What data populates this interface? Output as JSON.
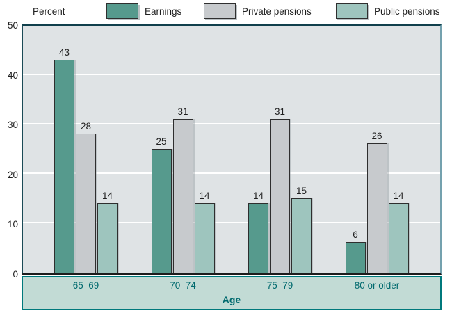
{
  "chart_data": {
    "type": "bar",
    "title": "",
    "ylabel": "Percent",
    "xlabel": "Age",
    "ylim": [
      0,
      50
    ],
    "yticks": [
      0,
      10,
      20,
      30,
      40,
      50
    ],
    "gridlines_at": [
      10,
      20,
      30,
      40
    ],
    "grid": "horizontal white lines",
    "legend_position": "top",
    "categories": [
      "65–69",
      "70–74",
      "75–79",
      "80 or older"
    ],
    "series": [
      {
        "name": "Earnings",
        "color": "#569a8d",
        "values": [
          43,
          25,
          14,
          6
        ]
      },
      {
        "name": "Private pensions",
        "color": "#c7cacd",
        "values": [
          28,
          31,
          31,
          26
        ]
      },
      {
        "name": "Public pensions",
        "color": "#9ec5be",
        "values": [
          14,
          14,
          15,
          14
        ]
      }
    ],
    "colors": {
      "plot_background": "#dfe3e5",
      "gridline": "#ffffff",
      "axis_strip_background": "#c2dbd5",
      "axis_strip_border": "#00797c",
      "axis_label_text": "#006a6e",
      "value_label_text": "#1f1f1f",
      "plot_border_dark": "#10404c",
      "plot_border_light": "#74a1ae",
      "baseline": "#1c1c1c",
      "bar_outline": "#2e2e2e"
    }
  }
}
